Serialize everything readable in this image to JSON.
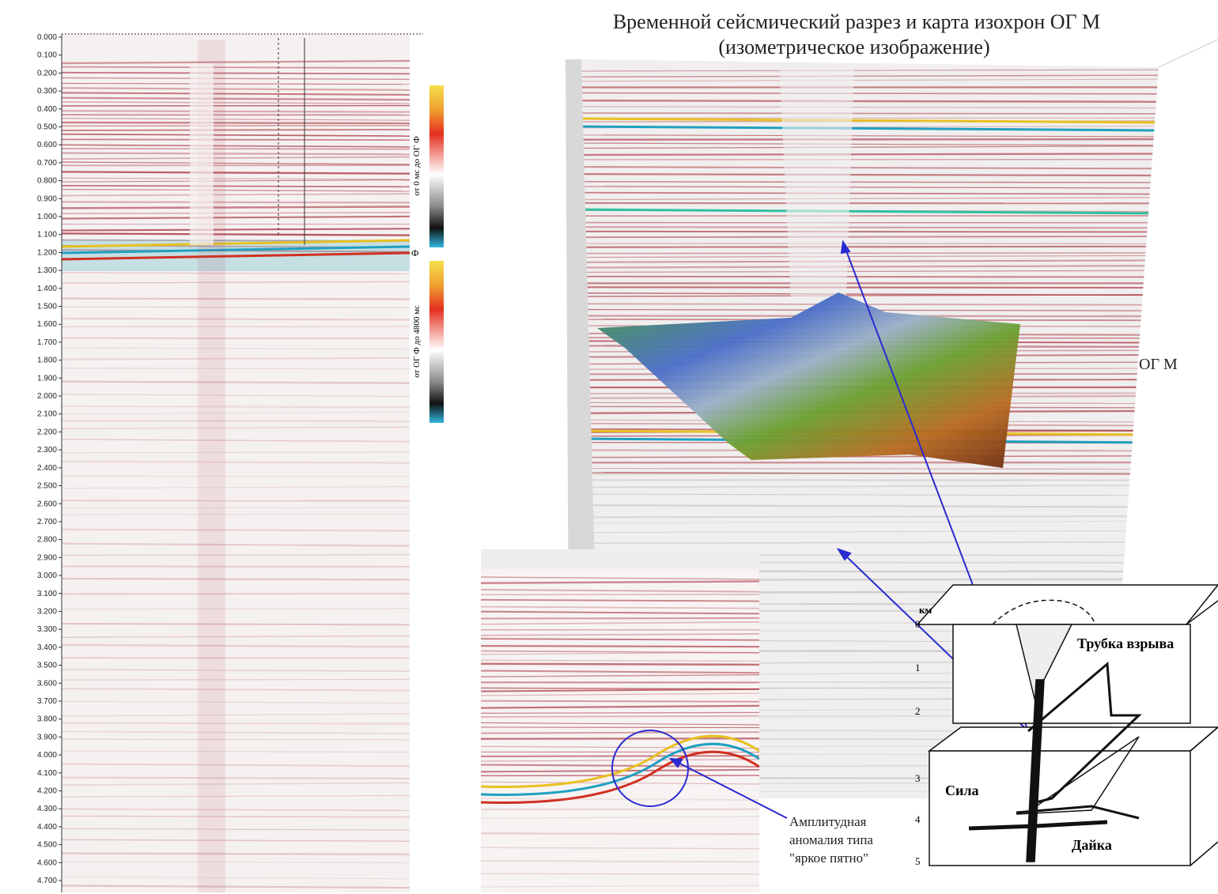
{
  "title": {
    "lines": [
      "Временной сейсмический разрез и карта изохрон ОГ М",
      "(изометрическое изображение)"
    ]
  },
  "left_section": {
    "time_labels": [
      "0.000",
      "0.100",
      "0.200",
      "0.300",
      "0.400",
      "0.500",
      "0.600",
      "0.700",
      "0.800",
      "0.900",
      "1.000",
      "1.100",
      "1.200",
      "1.300",
      "1.400",
      "1.500",
      "1.600",
      "1.700",
      "1.800",
      "1.900",
      "2.000",
      "2.100",
      "2.200",
      "2.300",
      "2.400",
      "2.500",
      "2.600",
      "2.700",
      "2.800",
      "2.900",
      "3.000",
      "3.100",
      "3.200",
      "3.300",
      "3.400",
      "3.500",
      "3.600",
      "3.700",
      "3.800",
      "3.900",
      "4.000",
      "4.100",
      "4.200",
      "4.300",
      "4.400",
      "4.500",
      "4.600",
      "4.700"
    ],
    "horizon_label": "Ф",
    "colorbars": [
      {
        "caption": "от 0 мс до ОГ Ф"
      },
      {
        "caption": "от ОГ Ф до 4800 мс"
      }
    ]
  },
  "isometric": {
    "horizon_label": "ОГ М"
  },
  "inset": {
    "annotation": [
      "Амплитудная",
      "аномалия типа",
      "\"яркое пятно\""
    ]
  },
  "diagram": {
    "depth_unit": "км",
    "depth_labels": [
      "0",
      "1",
      "2",
      "3",
      "4",
      "5"
    ],
    "labels": {
      "pipe": "Трубка взрыва",
      "sill": "Сила",
      "dyke": "Дайка"
    }
  }
}
